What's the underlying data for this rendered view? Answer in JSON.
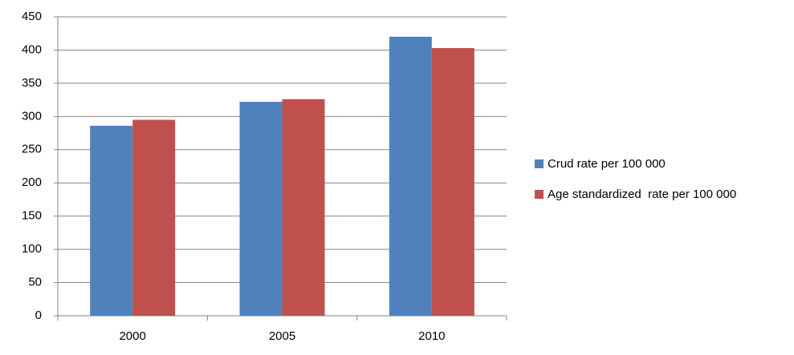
{
  "chart_data": {
    "type": "bar",
    "categories": [
      "2000",
      "2005",
      "2010"
    ],
    "series": [
      {
        "name": "Crud rate per 100 000",
        "color": "#4f81bd",
        "values": [
          286,
          322,
          420
        ]
      },
      {
        "name": "Age standardized  rate per 100 000",
        "color": "#c0504d",
        "values": [
          295,
          326,
          403
        ]
      }
    ],
    "ylim": [
      0,
      450
    ],
    "yticks": [
      0,
      50,
      100,
      150,
      200,
      250,
      300,
      350,
      400,
      450
    ],
    "grid": true,
    "legend": "right"
  }
}
